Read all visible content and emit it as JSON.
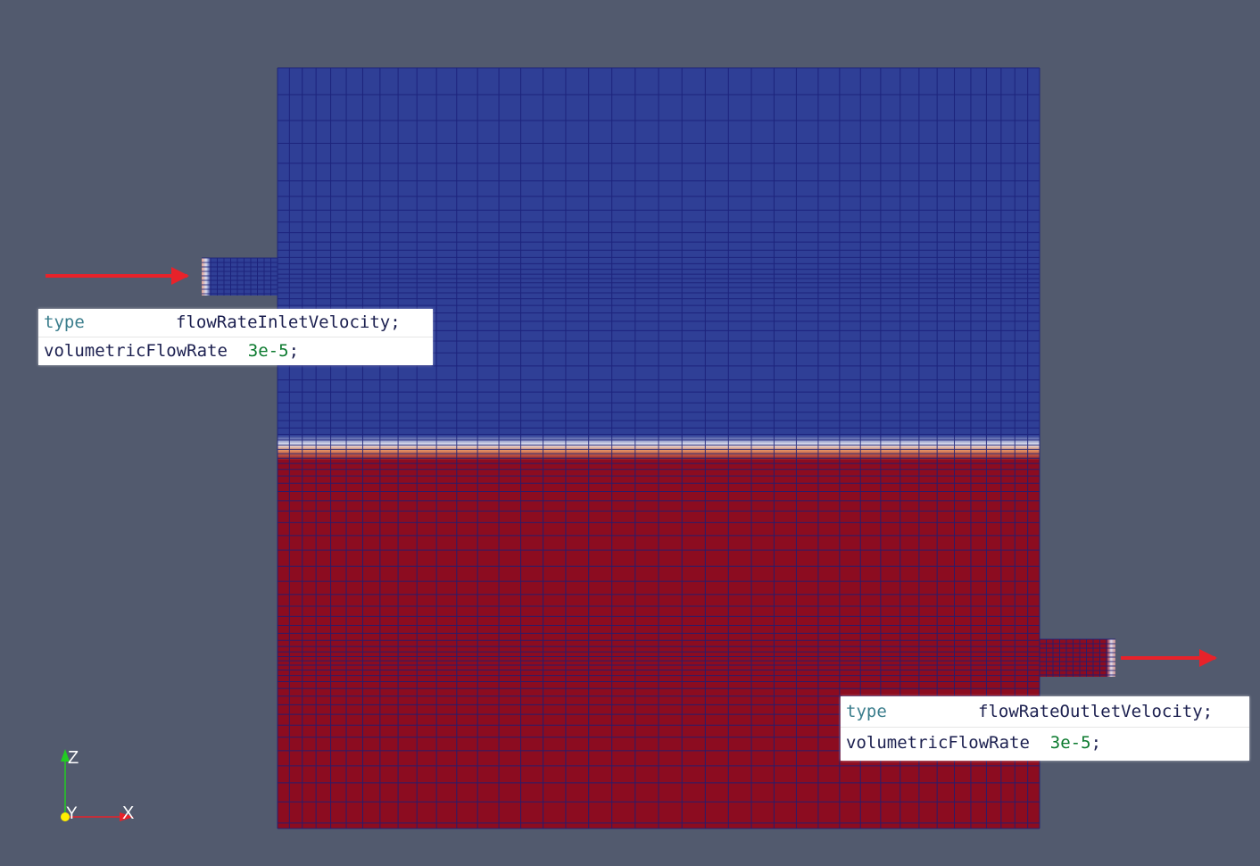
{
  "colors": {
    "background": "#525a6e",
    "water_phase": "#8c0c20",
    "air_phase": "#2f3f96",
    "mesh_lines": "#1a1f78",
    "interface_light": "#dfe3f0",
    "interface_warm": "#e08a5e",
    "flow_arrow": "#e8222a",
    "axis_z": "#22cc22",
    "axis_x": "#e8222a",
    "axis_y": "#ffee00"
  },
  "inlet": {
    "type_key": "type",
    "type_value": "flowRateInletVelocity",
    "rate_key": "volumetricFlowRate",
    "rate_value": "3e-5",
    "terminator": ";",
    "arrow_icon": "arrow-right-icon"
  },
  "outlet": {
    "type_key": "type",
    "type_value": "flowRateOutletVelocity",
    "rate_key": "volumetricFlowRate",
    "rate_value": "3e-5",
    "terminator": ";",
    "arrow_icon": "arrow-right-icon"
  },
  "axes": {
    "z_label": "Z",
    "y_label": "Y",
    "x_label": "X"
  }
}
